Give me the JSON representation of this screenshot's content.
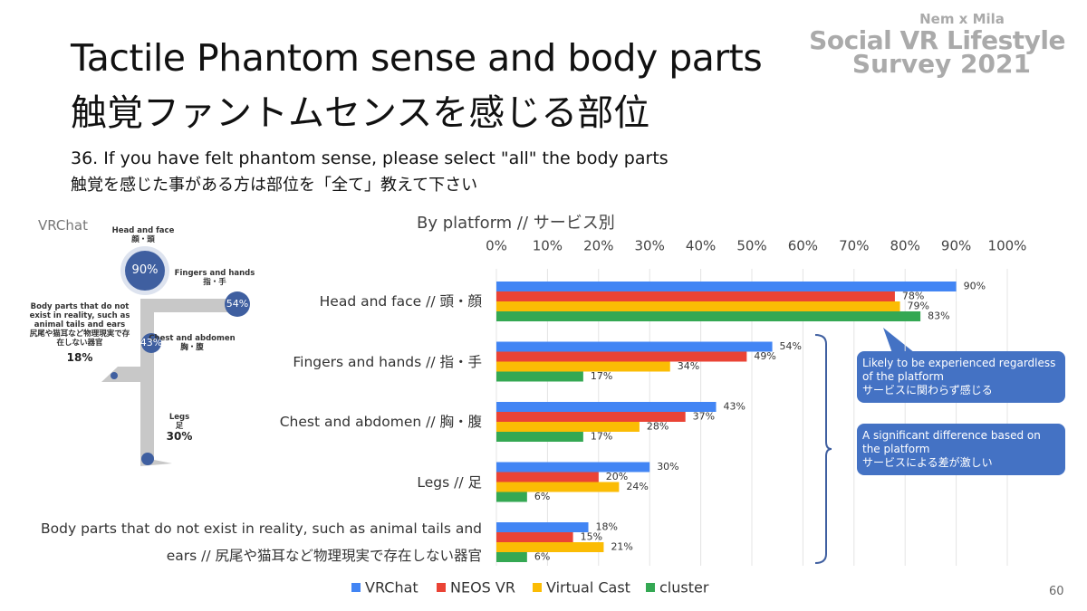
{
  "header": {
    "title": "Tactile Phantom sense and body parts",
    "title_ja": "触覚ファントムセンスを感じる部位",
    "logo": [
      "Nem x Mila",
      "Social VR Lifestyle",
      "Survey 2021"
    ]
  },
  "question": {
    "text": "36. If you have felt phantom sense, please select \"all\" the body parts",
    "text_ja": "触覚を感じた事がある方は部位を「全て」教えて下さい"
  },
  "figure": {
    "title": "VRChat",
    "parts": [
      {
        "label": "Head and face",
        "label_ja": "顔・頭",
        "value": "90%"
      },
      {
        "label": "Fingers and hands",
        "label_ja": "指・手",
        "value": "54%"
      },
      {
        "label": "Chest and abdomen",
        "label_ja": "胸・腹",
        "value": "43%"
      },
      {
        "label": "Legs",
        "label_ja": "足",
        "value": "30%"
      },
      {
        "label": "Body parts that do not exist in reality, such as animal tails and ears",
        "label_ja": "尻尾や猫耳など物理現実で存在しない器官",
        "value": "18%"
      }
    ]
  },
  "chart_data": {
    "type": "bar",
    "orientation": "horizontal",
    "title": "By platform // サービス別",
    "categories": [
      "Head and face // 頭・顔",
      "Fingers and hands // 指・手",
      "Chest and abdomen // 胸・腹",
      "Legs // 足",
      "Body parts that do not exist in reality, such as animal tails and ears // 尻尾や猫耳など物理現実で存在しない器官"
    ],
    "series": [
      {
        "name": "VRChat",
        "color": "#4285f4",
        "values": [
          90,
          54,
          43,
          30,
          18
        ],
        "value_labels": [
          "90%",
          "54%",
          "43%",
          "30%",
          "18%"
        ]
      },
      {
        "name": "NEOS VR",
        "color": "#ea4335",
        "values": [
          78,
          49,
          37,
          20,
          15
        ],
        "value_labels": [
          "78%",
          "49%",
          "37%",
          "20%",
          "15%"
        ]
      },
      {
        "name": "Virtual Cast",
        "color": "#fbbc04",
        "values": [
          79,
          34,
          28,
          24,
          21
        ],
        "value_labels": [
          "79%",
          "34%",
          "28%",
          "24%",
          "21%"
        ]
      },
      {
        "name": "cluster",
        "color": "#34a853",
        "values": [
          83,
          17,
          17,
          6,
          6
        ],
        "value_labels": [
          "83%",
          "17%",
          "17%",
          "6%",
          "6%"
        ]
      }
    ],
    "xlim": [
      0,
      100
    ],
    "xticks": [
      {
        "value": 0,
        "label": "0%"
      },
      {
        "value": 10,
        "label": "10%"
      },
      {
        "value": 20,
        "label": "20%"
      },
      {
        "value": 30,
        "label": "30%"
      },
      {
        "value": 40,
        "label": "40%"
      },
      {
        "value": 50,
        "label": "50%"
      },
      {
        "value": 60,
        "label": "60%"
      },
      {
        "value": 70,
        "label": "70%"
      },
      {
        "value": 80,
        "label": "80%"
      },
      {
        "value": 90,
        "label": "90%"
      },
      {
        "value": 100,
        "label": "100%"
      }
    ],
    "grid": true,
    "legend": "bottom"
  },
  "annotations": [
    {
      "text": "Likely to be experienced regardless of the platform",
      "text_ja": "サービスに関わらず感じる"
    },
    {
      "text": "A significant difference based on the platform",
      "text_ja": "サービスによる差が激しい"
    }
  ],
  "page_number": "60"
}
